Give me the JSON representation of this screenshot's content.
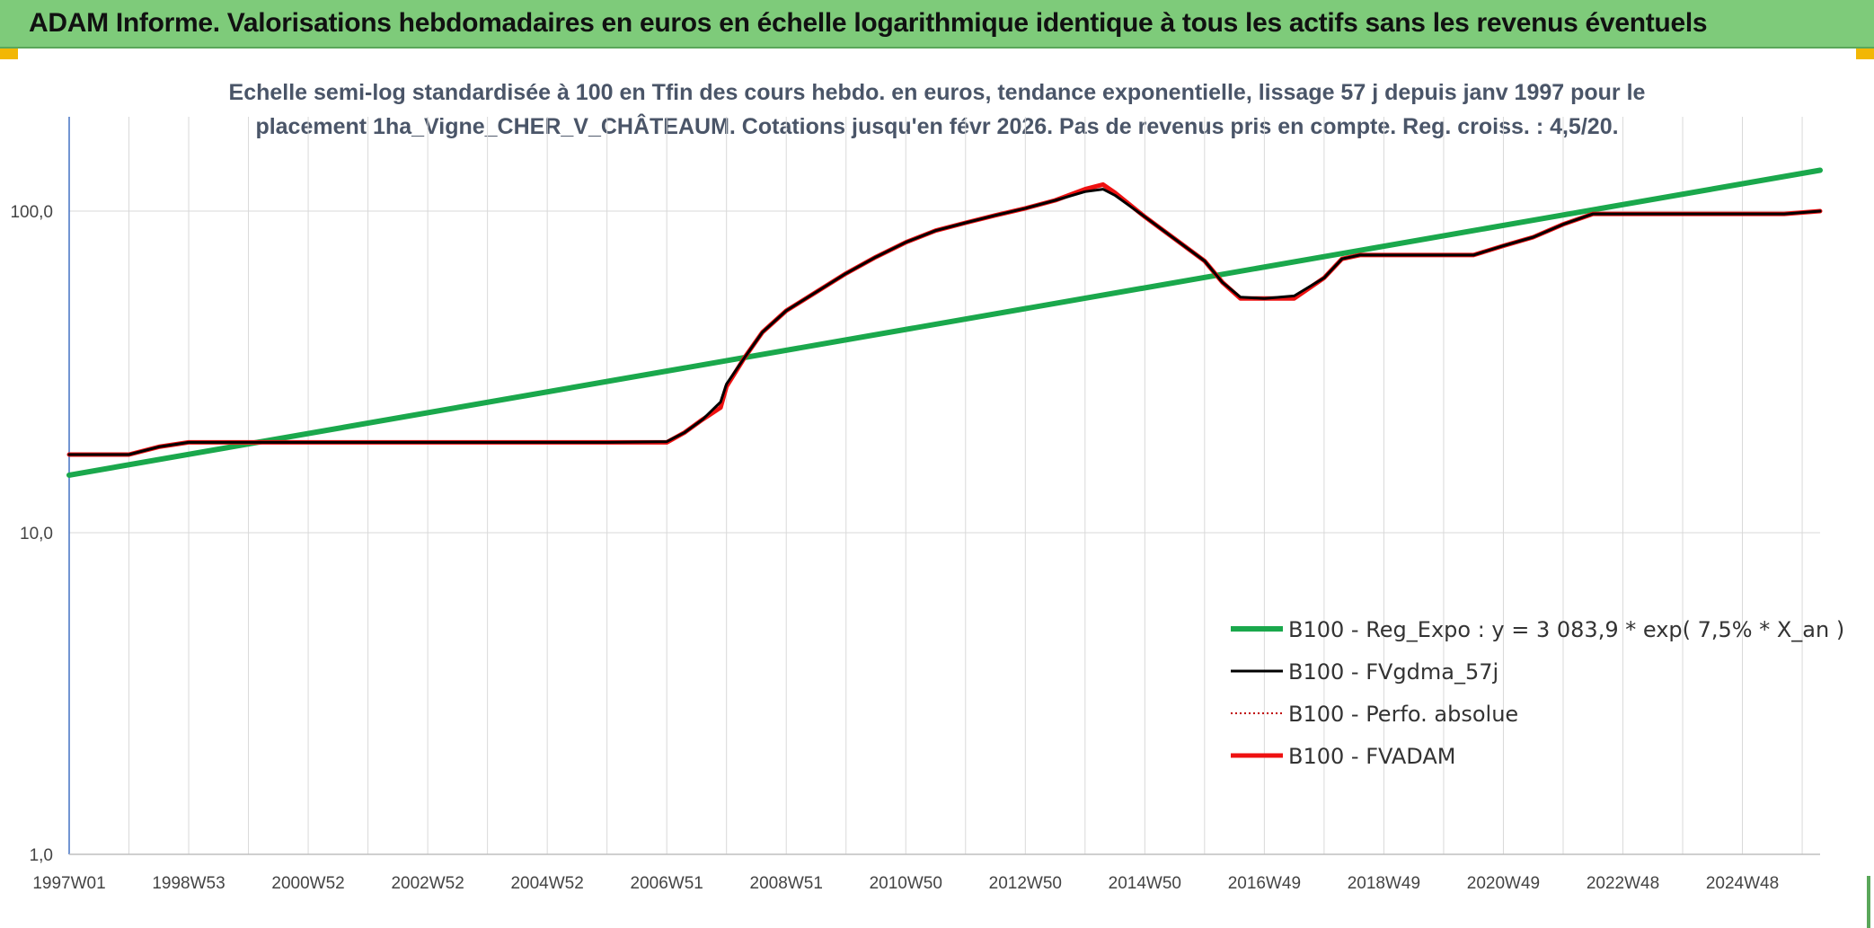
{
  "header": {
    "title": "ADAM Informe. Valorisations hebdomadaires en euros en échelle logarithmique identique à tous les actifs sans les revenus éventuels"
  },
  "colors": {
    "header_bg": "#7ecb7a",
    "trend": "#1aa84c",
    "fvgdma": "#000000",
    "perfo": "#c00000",
    "fvadam": "#ee1111",
    "grid": "#d9d9d9"
  },
  "chart_data": {
    "type": "line",
    "title_line1": "Echelle semi-log standardisée à 100 en Tfin des cours hebdo. en euros, tendance exponentielle, lissage 57 j depuis janv 1997 pour le",
    "title_line2": "placement 1ha_Vigne_CHER_V_CHÂTEAUM. Cotations jusqu'en févr 2026. Pas de revenus pris en compte. Reg. croiss. : 4,5/20.",
    "y_scale": "log",
    "ylim": [
      1,
      200
    ],
    "y_ticks": [
      {
        "value": 1,
        "label": "1,0"
      },
      {
        "value": 10,
        "label": "10,0"
      },
      {
        "value": 100,
        "label": "100,0"
      }
    ],
    "x_range": [
      1997.0,
      2026.3
    ],
    "x_ticks": [
      {
        "value": 1997.0,
        "label": "1997W01"
      },
      {
        "value": 1999.0,
        "label": "1998W53"
      },
      {
        "value": 2001.0,
        "label": "2000W52"
      },
      {
        "value": 2003.0,
        "label": "2002W52"
      },
      {
        "value": 2005.0,
        "label": "2004W52"
      },
      {
        "value": 2007.0,
        "label": "2006W51"
      },
      {
        "value": 2009.0,
        "label": "2008W51"
      },
      {
        "value": 2011.0,
        "label": "2010W50"
      },
      {
        "value": 2013.0,
        "label": "2012W50"
      },
      {
        "value": 2015.0,
        "label": "2014W50"
      },
      {
        "value": 2017.0,
        "label": "2016W49"
      },
      {
        "value": 2019.0,
        "label": "2018W49"
      },
      {
        "value": 2021.0,
        "label": "2020W49"
      },
      {
        "value": 2023.0,
        "label": "2022W48"
      },
      {
        "value": 2025.0,
        "label": "2024W48"
      }
    ],
    "grid": true,
    "legend_position": "right-center",
    "series": [
      {
        "name": "B100 - Reg_Expo : y = 3 083,9 * exp( 7,5% *  X_an )",
        "key": "trend",
        "style": "solid",
        "width": 6,
        "points": [
          [
            1997.0,
            15.1
          ],
          [
            2026.3,
            134.0
          ]
        ]
      },
      {
        "name": "B100 - FVgdma_57j",
        "key": "fvgdma",
        "style": "solid",
        "width": 3,
        "points": [
          [
            1997.0,
            17.5
          ],
          [
            1998.0,
            17.5
          ],
          [
            1998.5,
            18.5
          ],
          [
            1999.0,
            19.1
          ],
          [
            2000.0,
            19.1
          ],
          [
            2002.0,
            19.1
          ],
          [
            2004.0,
            19.1
          ],
          [
            2006.0,
            19.1
          ],
          [
            2007.0,
            19.2
          ],
          [
            2007.3,
            20.5
          ],
          [
            2007.6,
            22.5
          ],
          [
            2007.9,
            25.5
          ],
          [
            2008.0,
            29.0
          ],
          [
            2008.3,
            35.0
          ],
          [
            2008.6,
            42.0
          ],
          [
            2009.0,
            49.0
          ],
          [
            2009.5,
            56.0
          ],
          [
            2010.0,
            64.0
          ],
          [
            2010.5,
            72.0
          ],
          [
            2011.0,
            80.0
          ],
          [
            2011.5,
            87.0
          ],
          [
            2012.0,
            92.0
          ],
          [
            2012.5,
            97.0
          ],
          [
            2013.0,
            102.0
          ],
          [
            2013.5,
            108.0
          ],
          [
            2014.0,
            115.0
          ],
          [
            2014.3,
            117.0
          ],
          [
            2014.5,
            112.0
          ],
          [
            2015.0,
            96.0
          ],
          [
            2015.5,
            82.0
          ],
          [
            2016.0,
            70.0
          ],
          [
            2016.3,
            60.0
          ],
          [
            2016.6,
            54.0
          ],
          [
            2017.0,
            53.5
          ],
          [
            2017.5,
            54.5
          ],
          [
            2018.0,
            62.0
          ],
          [
            2018.3,
            71.0
          ],
          [
            2018.6,
            73.0
          ],
          [
            2019.0,
            73.0
          ],
          [
            2020.0,
            73.0
          ],
          [
            2020.5,
            73.0
          ],
          [
            2021.0,
            78.0
          ],
          [
            2021.5,
            83.0
          ],
          [
            2022.0,
            91.0
          ],
          [
            2022.5,
            98.0
          ],
          [
            2023.0,
            98.0
          ],
          [
            2024.0,
            98.0
          ],
          [
            2025.0,
            98.0
          ],
          [
            2025.7,
            98.0
          ],
          [
            2026.3,
            100.0
          ]
        ]
      },
      {
        "name": "B100 - Perfo. absolue",
        "key": "perfo",
        "style": "dotted",
        "width": 2,
        "points": []
      },
      {
        "name": "B100 - FVADAM",
        "key": "fvadam",
        "style": "solid",
        "width": 5,
        "points": [
          [
            1997.0,
            17.5
          ],
          [
            1998.0,
            17.5
          ],
          [
            1998.5,
            18.5
          ],
          [
            1999.0,
            19.1
          ],
          [
            2000.0,
            19.1
          ],
          [
            2002.0,
            19.1
          ],
          [
            2004.0,
            19.1
          ],
          [
            2006.0,
            19.1
          ],
          [
            2007.0,
            19.1
          ],
          [
            2007.3,
            20.5
          ],
          [
            2007.6,
            22.5
          ],
          [
            2007.9,
            24.5
          ],
          [
            2008.0,
            28.5
          ],
          [
            2008.3,
            35.0
          ],
          [
            2008.6,
            42.0
          ],
          [
            2009.0,
            49.0
          ],
          [
            2009.5,
            56.0
          ],
          [
            2010.0,
            64.0
          ],
          [
            2010.5,
            72.0
          ],
          [
            2011.0,
            80.0
          ],
          [
            2011.5,
            87.0
          ],
          [
            2012.0,
            92.0
          ],
          [
            2012.5,
            97.0
          ],
          [
            2013.0,
            102.0
          ],
          [
            2013.5,
            108.0
          ],
          [
            2014.0,
            117.0
          ],
          [
            2014.3,
            121.0
          ],
          [
            2014.5,
            114.0
          ],
          [
            2015.0,
            96.0
          ],
          [
            2015.5,
            82.0
          ],
          [
            2016.0,
            70.0
          ],
          [
            2016.3,
            60.0
          ],
          [
            2016.6,
            53.5
          ],
          [
            2017.0,
            53.5
          ],
          [
            2017.5,
            53.5
          ],
          [
            2018.0,
            62.0
          ],
          [
            2018.3,
            71.0
          ],
          [
            2018.6,
            73.0
          ],
          [
            2019.0,
            73.0
          ],
          [
            2020.0,
            73.0
          ],
          [
            2020.5,
            73.0
          ],
          [
            2021.0,
            78.0
          ],
          [
            2021.5,
            83.0
          ],
          [
            2022.0,
            91.0
          ],
          [
            2022.5,
            98.0
          ],
          [
            2023.0,
            98.0
          ],
          [
            2024.0,
            98.0
          ],
          [
            2025.0,
            98.0
          ],
          [
            2025.7,
            98.0
          ],
          [
            2026.3,
            100.0
          ]
        ]
      }
    ]
  }
}
